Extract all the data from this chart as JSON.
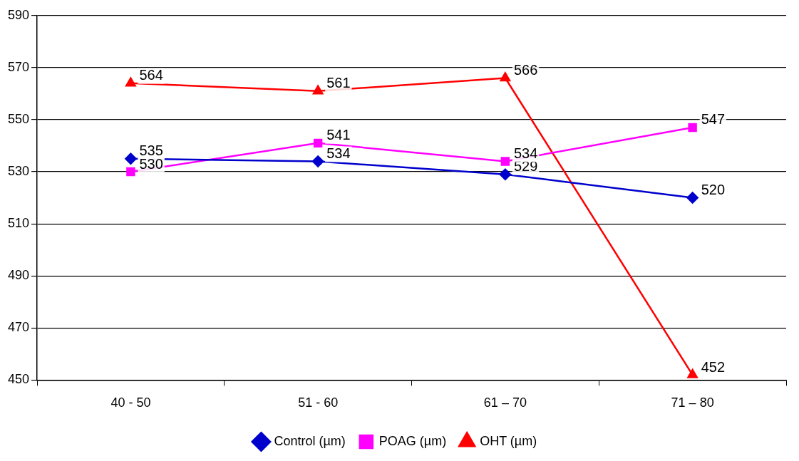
{
  "chart_data": {
    "type": "line",
    "categories": [
      "40 - 50",
      "51 - 60",
      "61 – 70",
      "71 – 80"
    ],
    "series": [
      {
        "name": "Control (µm)",
        "color": "#0000cc",
        "marker": "diamond",
        "values": [
          535,
          534,
          529,
          520
        ]
      },
      {
        "name": "POAG (µm)",
        "color": "#ff00ff",
        "marker": "square",
        "values": [
          530,
          541,
          534,
          547
        ]
      },
      {
        "name": "OHT (µm)",
        "color": "#ff0000",
        "marker": "triangle",
        "values": [
          564,
          561,
          566,
          452
        ]
      }
    ],
    "ylim": [
      450,
      590
    ],
    "yticks": [
      450,
      470,
      490,
      510,
      530,
      550,
      570,
      590
    ],
    "grid": "y",
    "legend": "bottom",
    "data_labels": true
  }
}
